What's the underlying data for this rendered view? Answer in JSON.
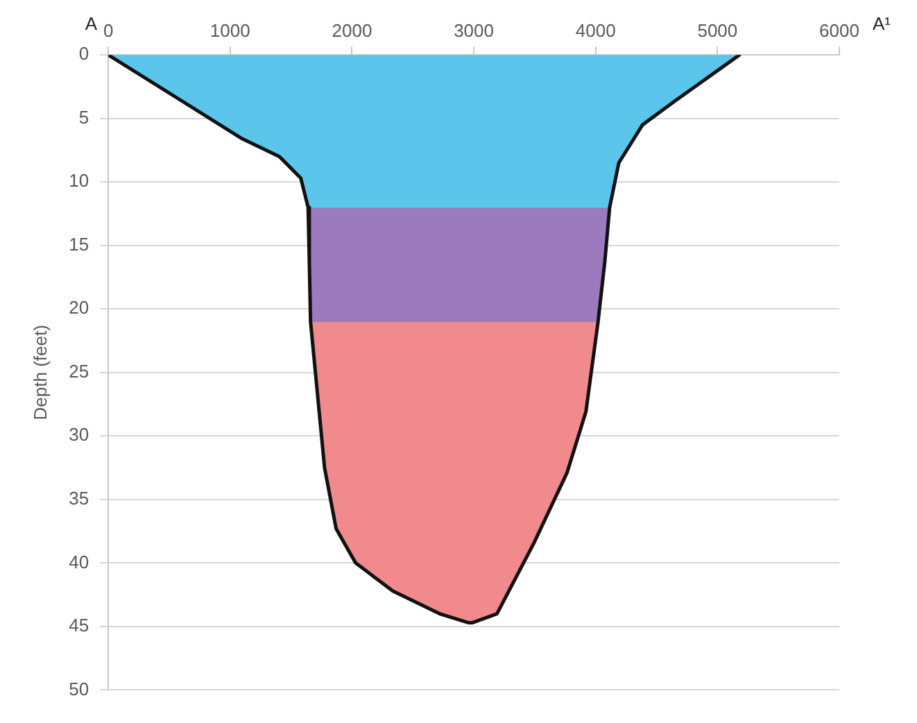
{
  "chart_data": {
    "type": "area",
    "ylabel": "Depth (feet)",
    "annotations": [
      "A",
      "A¹"
    ],
    "xlim": [
      0,
      6000
    ],
    "xticks": [
      0,
      1000,
      2000,
      3000,
      4000,
      5000,
      6000
    ],
    "ylim": [
      50,
      0
    ],
    "yticks": [
      0,
      5,
      10,
      15,
      20,
      25,
      30,
      35,
      40,
      45,
      50
    ],
    "grid": "y",
    "legend": false,
    "marker": "none",
    "series": [
      {
        "type": "area",
        "color": "#5bc5eb",
        "x": [
          0,
          1100,
          1405,
          1580,
          1640,
          4115,
          4190,
          4385,
          4655,
          5180
        ],
        "values": [
          0,
          6.6,
          8,
          9.7,
          12,
          12,
          8.5,
          5.5,
          3.6,
          0
        ]
      },
      {
        "type": "area",
        "color": "#9b7bbd",
        "x": [
          1640,
          1650,
          1660,
          4020,
          4075,
          4115
        ],
        "values": [
          12,
          16.3,
          21,
          21,
          16.3,
          12
        ]
      },
      {
        "type": "area",
        "color": "#f08a8c",
        "x": [
          1660,
          1720,
          1775,
          1870,
          2030,
          2335,
          2720,
          2955,
          2990,
          3190,
          3495,
          3765,
          3920,
          4020
        ],
        "values": [
          21,
          27,
          32.5,
          37.3,
          40,
          42.2,
          44,
          44.7,
          44.7,
          44,
          38.4,
          32.9,
          28.1,
          21
        ]
      },
      {
        "type": "line",
        "color": "#111111",
        "x": [
          0,
          1100,
          1405,
          1580,
          1640,
          1650,
          1660,
          1720,
          1775,
          1870,
          2030,
          2335,
          2720,
          2955,
          2990,
          3190,
          3495,
          3765,
          3920,
          4020,
          4075,
          4115,
          4190,
          4385,
          4655,
          5180
        ],
        "values": [
          0,
          6.6,
          8,
          9.7,
          12,
          16.3,
          21,
          27,
          32.5,
          37.3,
          40,
          42.2,
          44,
          44.7,
          44.7,
          44,
          38.4,
          32.9,
          28.1,
          21,
          16.3,
          12,
          8.5,
          5.5,
          3.6,
          0
        ]
      }
    ]
  }
}
